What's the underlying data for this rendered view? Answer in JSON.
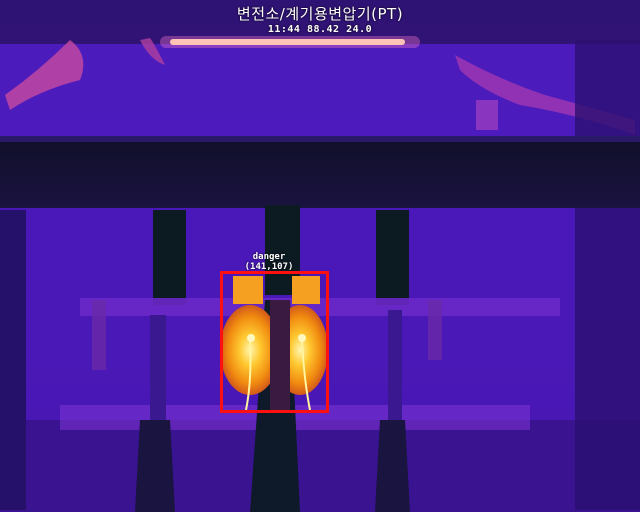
{
  "header": {
    "title": "변전소/계기용변압기(PT)",
    "readout": "11:44 88.42 24.0"
  },
  "detection": {
    "label": "danger",
    "coords": "(141,107)",
    "color": "#ff1010"
  },
  "palette": {
    "cold": "#2a0f6e",
    "cool": "#5a1fb0",
    "warm": "#c23aa0",
    "hot": "#f59a10",
    "hottest": "#fff4a0",
    "box": "#ff1010"
  }
}
